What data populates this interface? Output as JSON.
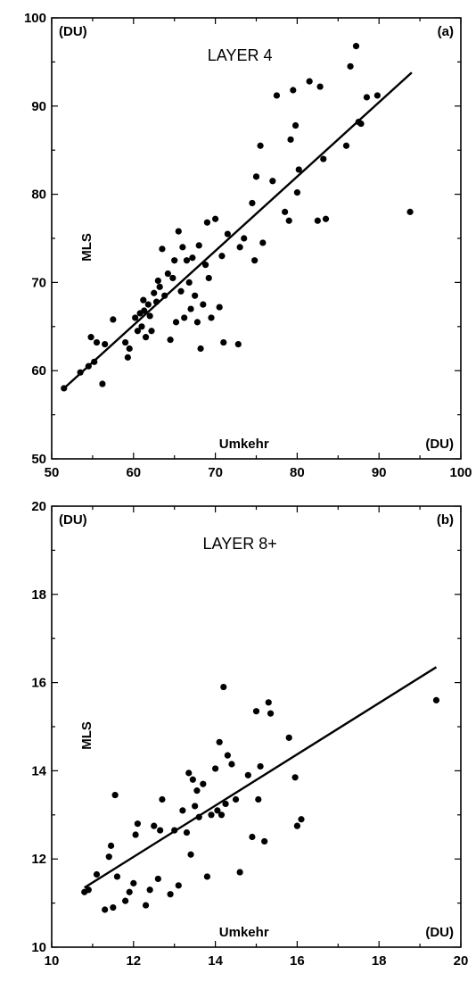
{
  "chart_data": [
    {
      "type": "scatter",
      "title": "LAYER 4",
      "panel_label": "(a)",
      "xlabel": "Umkehr",
      "ylabel": "MLS",
      "x_unit": "(DU)",
      "y_unit": "(DU)",
      "xlim": [
        50,
        100
      ],
      "ylim": [
        50,
        100
      ],
      "xticks": [
        50,
        60,
        70,
        80,
        90,
        100
      ],
      "yticks": [
        50,
        60,
        70,
        80,
        90,
        100
      ],
      "fit_line": {
        "x": [
          51.5,
          94
        ],
        "y": [
          58,
          93.8
        ]
      },
      "series": [
        {
          "x": [
            51.5,
            53.5,
            54.5,
            54.8,
            55.2,
            55.5,
            56.2,
            56.5,
            57.5,
            59.0,
            59.3,
            59.5,
            60.2,
            60.5,
            60.8,
            61.0,
            61.2,
            61.3,
            61.5,
            61.8,
            62.0,
            62.2,
            62.5,
            62.8,
            63.0,
            63.2,
            63.5,
            63.8,
            64.2,
            64.5,
            64.8,
            65.0,
            65.2,
            65.5,
            65.8,
            66.0,
            66.2,
            66.5,
            66.8,
            67.0,
            67.2,
            67.5,
            67.8,
            68.0,
            68.2,
            68.5,
            68.8,
            69.0,
            69.2,
            69.5,
            70.0,
            70.5,
            70.8,
            71.0,
            71.5,
            72.8,
            73.0,
            73.5,
            74.5,
            74.8,
            75.0,
            75.5,
            75.8,
            77.0,
            77.5,
            78.5,
            79.0,
            79.2,
            79.5,
            79.8,
            80.0,
            80.2,
            81.5,
            82.5,
            82.8,
            83.2,
            83.5,
            86.0,
            86.5,
            87.2,
            87.5,
            87.8,
            88.5,
            89.8,
            93.8
          ],
          "y": [
            58.0,
            59.8,
            60.5,
            63.8,
            61.0,
            63.2,
            58.5,
            63.0,
            65.8,
            63.2,
            61.5,
            62.5,
            66.0,
            64.5,
            66.5,
            65.0,
            68.0,
            66.8,
            63.8,
            67.5,
            66.2,
            64.5,
            68.8,
            67.8,
            70.2,
            69.5,
            73.8,
            68.5,
            71.0,
            63.5,
            70.5,
            72.5,
            65.5,
            75.8,
            69.0,
            74.0,
            66.0,
            72.5,
            70.0,
            67.0,
            72.8,
            68.5,
            65.5,
            74.2,
            62.5,
            67.5,
            72.0,
            76.8,
            70.5,
            66.0,
            77.2,
            67.2,
            73.0,
            63.2,
            75.5,
            63.0,
            74.0,
            75.0,
            79.0,
            72.5,
            82.0,
            85.5,
            74.5,
            81.5,
            91.2,
            78.0,
            77.0,
            86.2,
            91.8,
            87.8,
            80.2,
            82.8,
            92.8,
            77.0,
            92.2,
            84.0,
            77.2,
            85.5,
            94.5,
            96.8,
            88.2,
            88.0,
            91.0,
            91.2,
            78.0
          ]
        }
      ]
    },
    {
      "type": "scatter",
      "title": "LAYER 8+",
      "panel_label": "(b)",
      "xlabel": "Umkehr",
      "ylabel": "MLS",
      "x_unit": "(DU)",
      "y_unit": "(DU)",
      "xlim": [
        10,
        20
      ],
      "ylim": [
        10,
        20
      ],
      "xticks": [
        10,
        12,
        14,
        16,
        18,
        20
      ],
      "yticks": [
        10,
        12,
        14,
        16,
        18,
        20
      ],
      "fit_line": {
        "x": [
          10.8,
          19.4
        ],
        "y": [
          11.35,
          16.35
        ]
      },
      "series": [
        {
          "x": [
            10.8,
            10.9,
            11.1,
            11.3,
            11.4,
            11.45,
            11.5,
            11.55,
            11.6,
            11.8,
            11.9,
            12.0,
            12.05,
            12.1,
            12.3,
            12.4,
            12.5,
            12.6,
            12.65,
            12.7,
            12.9,
            13.0,
            13.1,
            13.2,
            13.3,
            13.35,
            13.4,
            13.45,
            13.5,
            13.55,
            13.6,
            13.7,
            13.8,
            13.9,
            14.0,
            14.05,
            14.1,
            14.15,
            14.2,
            14.25,
            14.3,
            14.4,
            14.5,
            14.6,
            14.8,
            14.9,
            15.0,
            15.05,
            15.1,
            15.2,
            15.3,
            15.35,
            15.8,
            15.95,
            16.0,
            16.1,
            19.4
          ],
          "y": [
            11.25,
            11.3,
            11.65,
            10.85,
            12.05,
            12.3,
            10.9,
            13.45,
            11.6,
            11.05,
            11.25,
            11.45,
            12.55,
            12.8,
            10.95,
            11.3,
            12.75,
            11.55,
            12.65,
            13.35,
            11.2,
            12.65,
            11.4,
            13.1,
            12.6,
            13.95,
            12.1,
            13.8,
            13.2,
            13.55,
            12.95,
            13.7,
            11.6,
            13.0,
            14.05,
            13.1,
            14.65,
            13.0,
            15.9,
            13.25,
            14.35,
            14.15,
            13.35,
            11.7,
            13.9,
            12.5,
            15.35,
            13.35,
            14.1,
            12.4,
            15.55,
            15.3,
            14.75,
            13.85,
            12.75,
            12.9,
            15.6
          ]
        }
      ]
    }
  ]
}
